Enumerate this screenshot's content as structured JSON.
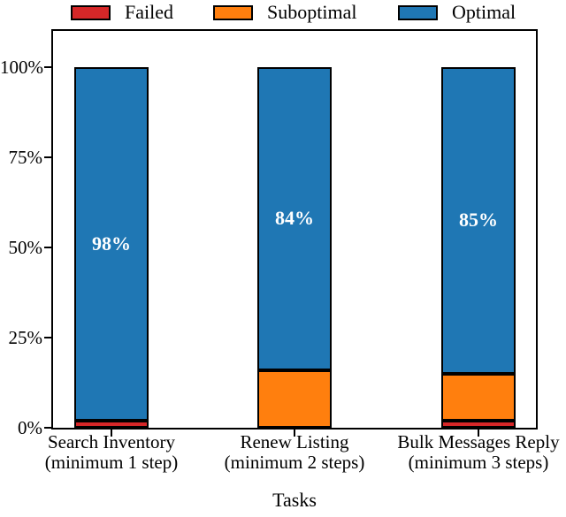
{
  "chart_data": {
    "type": "bar",
    "stacked": true,
    "orientation": "vertical",
    "xlabel": "Tasks",
    "ylabel": "",
    "ylim": [
      0,
      110
    ],
    "grid": false,
    "legend_position": "top",
    "yticks": [
      {
        "value": 0,
        "label": "0%"
      },
      {
        "value": 25,
        "label": "25%"
      },
      {
        "value": 50,
        "label": "50%"
      },
      {
        "value": 75,
        "label": "75%"
      },
      {
        "value": 100,
        "label": "100%"
      }
    ],
    "categories": [
      {
        "label_lines": [
          "Search Inventory",
          "(minimum 1 step)"
        ]
      },
      {
        "label_lines": [
          "Renew Listing",
          "(minimum 2 steps)"
        ]
      },
      {
        "label_lines": [
          "Bulk Messages Reply",
          "(minimum 3 steps)"
        ]
      }
    ],
    "series": [
      {
        "name": "Failed",
        "color": "#d62728",
        "values": [
          2,
          0,
          2
        ]
      },
      {
        "name": "Suboptimal",
        "color": "#ff7f0e",
        "values": [
          0,
          16,
          13
        ]
      },
      {
        "name": "Optimal",
        "color": "#1f77b4",
        "values": [
          98,
          84,
          85
        ]
      }
    ],
    "bar_labels": [
      [
        "2%",
        "",
        "2%"
      ],
      [
        "",
        "16%",
        "13%"
      ],
      [
        "98%",
        "84%",
        "85%"
      ]
    ],
    "bar_label_color": "#ffffff",
    "axis_color": "#000000"
  }
}
